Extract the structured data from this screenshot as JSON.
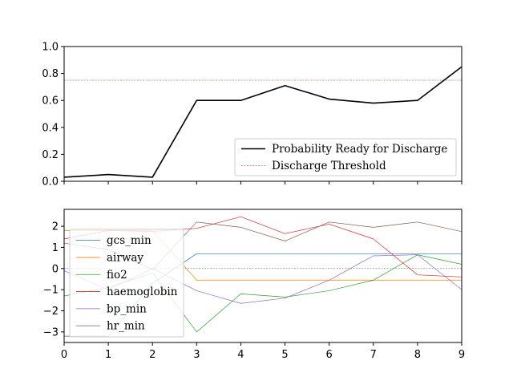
{
  "chart_data": [
    {
      "type": "line",
      "x": [
        0,
        1,
        2,
        3,
        4,
        5,
        6,
        7,
        8,
        9
      ],
      "xlim": [
        0,
        9
      ],
      "ylim": [
        0,
        1.0
      ],
      "y_ticks": [
        "0.0",
        "0.2",
        "0.4",
        "0.6",
        "0.8",
        "1.0"
      ],
      "y_tick_values": [
        0,
        0.2,
        0.4,
        0.6,
        0.8,
        1.0
      ],
      "series": [
        {
          "name": "Probability Ready for Discharge",
          "color": "#000000",
          "values": [
            0.03,
            0.05,
            0.03,
            0.6,
            0.6,
            0.71,
            0.61,
            0.58,
            0.6,
            0.85
          ]
        }
      ],
      "threshold": {
        "name": "Discharge Threshold",
        "value": 0.75,
        "color": "#e06666"
      },
      "legend_position": "lower-right",
      "grid": false
    },
    {
      "type": "line",
      "x": [
        0,
        1,
        2,
        3,
        4,
        5,
        6,
        7,
        8,
        9
      ],
      "xlim": [
        0,
        9
      ],
      "ylim": [
        -3.5,
        2.8
      ],
      "x_ticks": [
        "0",
        "1",
        "2",
        "3",
        "4",
        "5",
        "6",
        "7",
        "8",
        "9"
      ],
      "y_ticks": [
        "−3",
        "−2",
        "−1",
        "0",
        "1",
        "2"
      ],
      "y_tick_values": [
        -3,
        -2,
        -1,
        0,
        1,
        2
      ],
      "zero_line": {
        "value": 0,
        "color": "#888888"
      },
      "series": [
        {
          "name": "gcs_min",
          "color": "#1f77b4",
          "values": [
            -3.2,
            -3.2,
            -0.7,
            0.7,
            0.7,
            0.7,
            0.7,
            0.7,
            0.7,
            0.7
          ]
        },
        {
          "name": "airway",
          "color": "#ff7f0e",
          "values": [
            1.8,
            1.8,
            1.8,
            -0.55,
            -0.55,
            -0.55,
            -0.55,
            -0.55,
            -0.55,
            -0.55
          ]
        },
        {
          "name": "fio2",
          "color": "#2ca02c",
          "values": [
            -1.3,
            -0.9,
            -0.2,
            -3.0,
            -1.2,
            -1.35,
            -1.05,
            -0.55,
            0.65,
            0.2
          ]
        },
        {
          "name": "haemoglobin",
          "color": "#d62728",
          "values": [
            1.4,
            1.8,
            1.75,
            1.9,
            2.45,
            1.65,
            2.1,
            1.4,
            -0.3,
            -0.4
          ]
        },
        {
          "name": "bp_min",
          "color": "#9467bd",
          "values": [
            -0.1,
            -1.0,
            0.0,
            -1.05,
            -1.65,
            -1.4,
            -0.55,
            0.6,
            0.65,
            -1.0
          ]
        },
        {
          "name": "hr_min",
          "color": "#8c564b",
          "values": [
            1.2,
            0.9,
            -0.05,
            2.2,
            1.95,
            1.3,
            2.2,
            1.95,
            2.2,
            1.75
          ]
        }
      ],
      "legend_position": "lower-left",
      "grid": false
    }
  ]
}
